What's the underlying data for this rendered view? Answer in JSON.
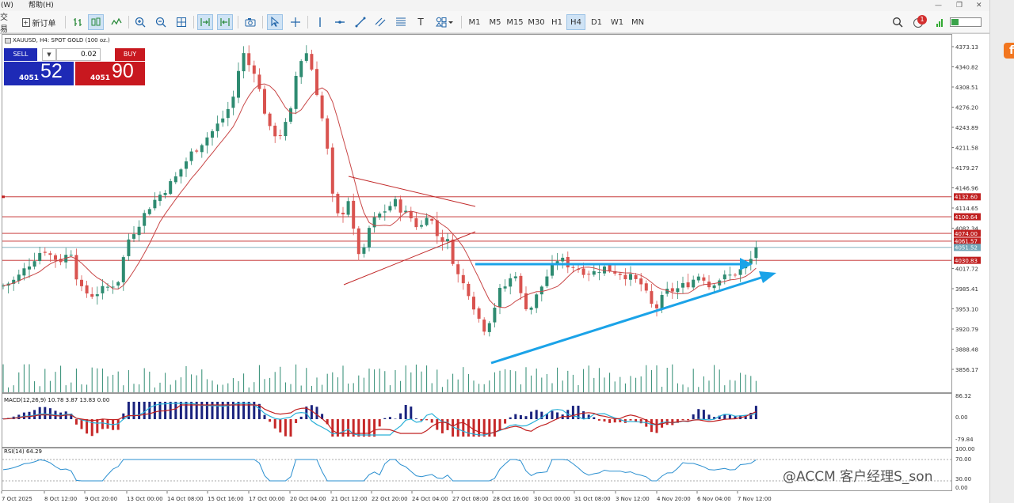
{
  "menubar": {
    "partial": "(W)",
    "help": "帮助(H)"
  },
  "toolbar": {
    "partial": "交易",
    "new_order": "新订单",
    "text_tool": "T",
    "timeframes": [
      "M1",
      "M5",
      "M15",
      "M30",
      "H1",
      "H4",
      "D1",
      "W1",
      "MN"
    ],
    "active_timeframe": "H4",
    "notif_count": "1"
  },
  "colors": {
    "bull": "#2e8b71",
    "bear": "#d9534f",
    "ma": "#c94848",
    "arrow": "#1ba3e8",
    "hline": "#c02020",
    "trend": "#c22a2a",
    "bid": "#72a6b8",
    "macd_hist_pos": "#1a237e",
    "macd_hist_neg": "#c62828",
    "macd_signal": "#c02020",
    "macd_line": "#2ab0d8",
    "rsi_line": "#2a8fd0",
    "sell_bg": "#1e2ab6",
    "buy_bg": "#c8181f"
  },
  "chart": {
    "symbol": "XAUUSD, H4:  SPOT GOLD (100 oz.)",
    "price_ticks": [
      "4373.13",
      "4340.82",
      "4308.51",
      "4276.20",
      "4243.89",
      "4211.58",
      "4179.27",
      "4146.96",
      "4114.65",
      "4082.34",
      "4017.72",
      "3985.41",
      "3953.10",
      "3920.79",
      "3888.48",
      "3856.17"
    ],
    "hline_labels": [
      "4132.60",
      "4100.64",
      "4074.00",
      "4061.57",
      "4030.83"
    ],
    "bid_label": "4051.52",
    "time_labels": [
      "7 Oct 2025",
      "8 Oct 12:00",
      "9 Oct 20:00",
      "13 Oct 00:00",
      "14 Oct 08:00",
      "15 Oct 16:00",
      "17 Oct 00:00",
      "20 Oct 04:00",
      "21 Oct 12:00",
      "22 Oct 20:00",
      "24 Oct 04:00",
      "27 Oct 08:00",
      "28 Oct 16:00",
      "30 Oct 00:00",
      "31 Oct 08:00",
      "3 Nov 12:00",
      "4 Nov 20:00",
      "6 Nov 04:00",
      "7 Nov 12:00"
    ]
  },
  "trade": {
    "sell_label": "SELL",
    "buy_label": "BUY",
    "lot": "0.02",
    "down": "▼",
    "up": "▲",
    "sell_small": "4051",
    "sell_big": "52",
    "buy_small": "4051",
    "buy_big": "90"
  },
  "macd": {
    "label": "MACD(12,26,9) 10.78 3.87 13.83 0.00",
    "ticks": [
      "86.32",
      "0.00",
      "-79.84"
    ]
  },
  "rsi": {
    "label": "RSI(14) 64.29",
    "ticks": [
      "100.00",
      "70.00",
      "30.00",
      "0.00"
    ]
  },
  "watermark": "@ACCM 客户经理S_son",
  "sidebar_logo": "f"
}
